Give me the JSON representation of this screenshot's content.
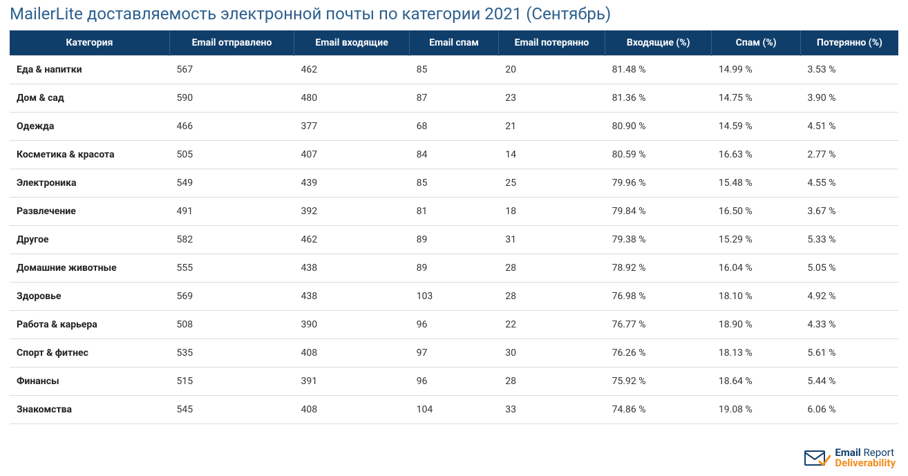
{
  "title": "MailerLite доставляемость электронной почты по категории 2021 (Сентябрь)",
  "table": {
    "type": "table",
    "header_bg": "#0f3e6b",
    "header_text_color": "#ffffff",
    "row_border_color": "#dcdcdc",
    "title_color": "#2d5f8e",
    "title_fontsize": 24,
    "cell_fontsize": 14,
    "columns": [
      {
        "key": "category",
        "label": "Категория",
        "width_pct": 18,
        "align": "left",
        "bold": true
      },
      {
        "key": "sent",
        "label": "Email отправлено",
        "width_pct": 14,
        "align": "left",
        "bold": false
      },
      {
        "key": "inbox",
        "label": "Email входящие",
        "width_pct": 13,
        "align": "left",
        "bold": false
      },
      {
        "key": "spam",
        "label": "Email спам",
        "width_pct": 10,
        "align": "left",
        "bold": false
      },
      {
        "key": "lost",
        "label": "Email потерянно",
        "width_pct": 12,
        "align": "left",
        "bold": false
      },
      {
        "key": "inbox_pct",
        "label": "Входящие (%)",
        "width_pct": 12,
        "align": "left",
        "bold": false
      },
      {
        "key": "spam_pct",
        "label": "Спам (%)",
        "width_pct": 10,
        "align": "left",
        "bold": false
      },
      {
        "key": "lost_pct",
        "label": "Потерянно (%)",
        "width_pct": 11,
        "align": "left",
        "bold": false
      }
    ],
    "rows": [
      {
        "category": "Еда & напитки",
        "sent": "567",
        "inbox": "462",
        "spam": "85",
        "lost": "20",
        "inbox_pct": "81.48 %",
        "spam_pct": "14.99 %",
        "lost_pct": "3.53 %"
      },
      {
        "category": "Дом & сад",
        "sent": "590",
        "inbox": "480",
        "spam": "87",
        "lost": "23",
        "inbox_pct": "81.36 %",
        "spam_pct": "14.75 %",
        "lost_pct": "3.90 %"
      },
      {
        "category": "Одежда",
        "sent": "466",
        "inbox": "377",
        "spam": "68",
        "lost": "21",
        "inbox_pct": "80.90 %",
        "spam_pct": "14.59 %",
        "lost_pct": "4.51 %"
      },
      {
        "category": "Косметика & красота",
        "sent": "505",
        "inbox": "407",
        "spam": "84",
        "lost": "14",
        "inbox_pct": "80.59 %",
        "spam_pct": "16.63 %",
        "lost_pct": "2.77 %"
      },
      {
        "category": "Электроника",
        "sent": "549",
        "inbox": "439",
        "spam": "85",
        "lost": "25",
        "inbox_pct": "79.96 %",
        "spam_pct": "15.48 %",
        "lost_pct": "4.55 %"
      },
      {
        "category": "Развлечение",
        "sent": "491",
        "inbox": "392",
        "spam": "81",
        "lost": "18",
        "inbox_pct": "79.84 %",
        "spam_pct": "16.50 %",
        "lost_pct": "3.67 %"
      },
      {
        "category": "Другое",
        "sent": "582",
        "inbox": "462",
        "spam": "89",
        "lost": "31",
        "inbox_pct": "79.38 %",
        "spam_pct": "15.29 %",
        "lost_pct": "5.33 %"
      },
      {
        "category": "Домашние животные",
        "sent": "555",
        "inbox": "438",
        "spam": "89",
        "lost": "28",
        "inbox_pct": "78.92 %",
        "spam_pct": "16.04 %",
        "lost_pct": "5.05 %"
      },
      {
        "category": "Здоровье",
        "sent": "569",
        "inbox": "438",
        "spam": "103",
        "lost": "28",
        "inbox_pct": "76.98 %",
        "spam_pct": "18.10 %",
        "lost_pct": "4.92 %"
      },
      {
        "category": "Работа & карьера",
        "sent": "508",
        "inbox": "390",
        "spam": "96",
        "lost": "22",
        "inbox_pct": "76.77 %",
        "spam_pct": "18.90 %",
        "lost_pct": "4.33 %"
      },
      {
        "category": "Спорт & фитнес",
        "sent": "535",
        "inbox": "408",
        "spam": "97",
        "lost": "30",
        "inbox_pct": "76.26 %",
        "spam_pct": "18.13 %",
        "lost_pct": "5.61 %"
      },
      {
        "category": "Финансы",
        "sent": "515",
        "inbox": "391",
        "spam": "96",
        "lost": "28",
        "inbox_pct": "75.92 %",
        "spam_pct": "18.64 %",
        "lost_pct": "5.44 %"
      },
      {
        "category": "Знакомства",
        "sent": "545",
        "inbox": "408",
        "spam": "104",
        "lost": "33",
        "inbox_pct": "74.86 %",
        "spam_pct": "19.08 %",
        "lost_pct": "6.06 %"
      }
    ]
  },
  "footer": {
    "brand_word1": "Email",
    "brand_word2": "Report",
    "brand_line2": "Deliverability",
    "icon_color_primary": "#0f3e6b",
    "icon_color_accent": "#f28c1c"
  }
}
